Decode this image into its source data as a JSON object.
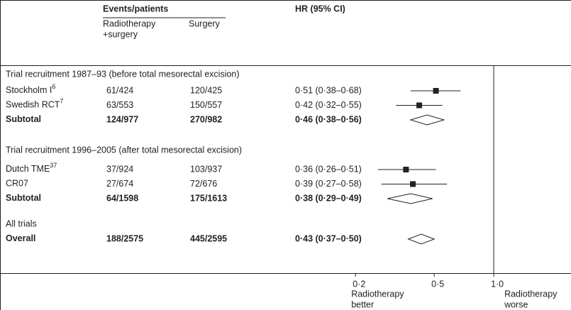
{
  "header": {
    "events": "Events/patients",
    "rs": [
      "Radiotherapy",
      "+surgery"
    ],
    "surgery": "Surgery",
    "hr": "HR (95% CI)"
  },
  "chart_data": {
    "type": "forest",
    "log_scale": true,
    "xlim": [
      0.19,
      2.0
    ],
    "xticks": [
      {
        "value": 0.2,
        "label": "0·2"
      },
      {
        "value": 0.5,
        "label": "0·5"
      },
      {
        "value": 1.0,
        "label": "1·0"
      }
    ],
    "color": "#222222",
    "left_label": [
      "Radiotherapy",
      "better"
    ],
    "right_label": [
      "Radiotherapy",
      "worse"
    ],
    "groups": [
      {
        "title": "Trial recruitment 1987–93 (before total mesorectal excision)",
        "studies": [
          {
            "name": "Stockholm I",
            "ref": "6",
            "rs": "61/424",
            "surgery": "120/425",
            "hr_label": "0·51 (0·38–0·68)",
            "hr": 0.51,
            "lo": 0.38,
            "hi": 0.68
          },
          {
            "name": "Swedish RCT",
            "ref": "7",
            "rs": "63/553",
            "surgery": "150/557",
            "hr_label": "0·42 (0·32–0·55)",
            "hr": 0.42,
            "lo": 0.32,
            "hi": 0.55
          }
        ],
        "summary": {
          "name": "Subtotal",
          "rs": "124/977",
          "surgery": "270/982",
          "hr_label": "0·46 (0·38–0·56)",
          "hr": 0.46,
          "lo": 0.38,
          "hi": 0.56
        }
      },
      {
        "title": "Trial recruitment 1996–2005 (after total mesorectal excision)",
        "studies": [
          {
            "name": "Dutch TME",
            "ref": "37",
            "rs": "37/924",
            "surgery": "103/937",
            "hr_label": "0·36 (0·26–0·51)",
            "hr": 0.36,
            "lo": 0.26,
            "hi": 0.51
          },
          {
            "name": "CR07",
            "rs": "27/674",
            "surgery": "72/676",
            "hr_label": "0·39 (0·27–0·58)",
            "hr": 0.39,
            "lo": 0.27,
            "hi": 0.58
          }
        ],
        "summary": {
          "name": "Subtotal",
          "rs": "64/1598",
          "surgery": "175/1613",
          "hr_label": "0·38 (0·29–0·49)",
          "hr": 0.38,
          "lo": 0.29,
          "hi": 0.49
        }
      },
      {
        "title": "All trials",
        "studies": [],
        "summary": {
          "name": "Overall",
          "rs": "188/2575",
          "surgery": "445/2595",
          "hr_label": "0·43 (0·37–0·50)",
          "hr": 0.43,
          "lo": 0.37,
          "hi": 0.5
        }
      }
    ]
  }
}
